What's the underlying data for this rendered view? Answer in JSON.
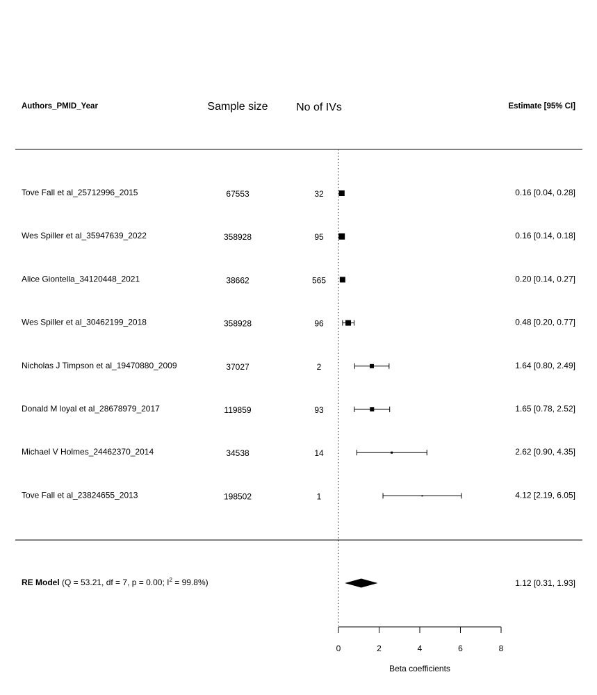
{
  "chart_data": {
    "type": "forest",
    "headers": {
      "study": "Authors_PMID_Year",
      "sample_size": "Sample size",
      "n_ivs": "No of IVs",
      "estimate": "Estimate [95% CI]"
    },
    "studies": [
      {
        "label": "Tove Fall et al_25712996_2015",
        "sample_size": "67553",
        "n_ivs": "32",
        "estimate": 0.16,
        "ci_low": 0.04,
        "ci_high": 0.28,
        "estimate_text": "0.16 [0.04, 0.28]"
      },
      {
        "label": "Wes Spiller et al_35947639_2022",
        "sample_size": "358928",
        "n_ivs": "95",
        "estimate": 0.16,
        "ci_low": 0.14,
        "ci_high": 0.18,
        "estimate_text": "0.16 [0.14, 0.18]"
      },
      {
        "label": "Alice Giontella_34120448_2021",
        "sample_size": "38662",
        "n_ivs": "565",
        "estimate": 0.2,
        "ci_low": 0.14,
        "ci_high": 0.27,
        "estimate_text": "0.20 [0.14, 0.27]"
      },
      {
        "label": "Wes Spiller et al_30462199_2018",
        "sample_size": "358928",
        "n_ivs": "96",
        "estimate": 0.48,
        "ci_low": 0.2,
        "ci_high": 0.77,
        "estimate_text": "0.48 [0.20, 0.77]"
      },
      {
        "label": "Nicholas J Timpson et al_19470880_2009",
        "sample_size": "37027",
        "n_ivs": "2",
        "estimate": 1.64,
        "ci_low": 0.8,
        "ci_high": 2.49,
        "estimate_text": "1.64 [0.80, 2.49]"
      },
      {
        "label": "Donald M loyal et al_28678979_2017",
        "sample_size": "119859",
        "n_ivs": "93",
        "estimate": 1.65,
        "ci_low": 0.78,
        "ci_high": 2.52,
        "estimate_text": "1.65 [0.78, 2.52]"
      },
      {
        "label": "Michael V Holmes_24462370_2014",
        "sample_size": "34538",
        "n_ivs": "14",
        "estimate": 2.62,
        "ci_low": 0.9,
        "ci_high": 4.35,
        "estimate_text": "2.62 [0.90, 4.35]"
      },
      {
        "label": "Tove Fall et al_23824655_2013",
        "sample_size": "198502",
        "n_ivs": "1",
        "estimate": 4.12,
        "ci_low": 2.19,
        "ci_high": 6.05,
        "estimate_text": "4.12 [2.19, 6.05]"
      }
    ],
    "summary": {
      "label_bold": "RE Model",
      "label_pre": " (Q = 53.21, df = 7, p = 0.00; I",
      "label_sup": "2",
      "label_post": " = 99.8%)",
      "estimate": 1.12,
      "ci_low": 0.31,
      "ci_high": 1.93,
      "estimate_text": "1.12 [0.31, 1.93]"
    },
    "x_axis": {
      "label": "Beta coefficients",
      "ticks": [
        0,
        2,
        4,
        6,
        8
      ],
      "tick_labels": [
        "0",
        "2",
        "4",
        "6",
        "8"
      ],
      "range": [
        0,
        8
      ]
    },
    "reference_line": 0
  }
}
